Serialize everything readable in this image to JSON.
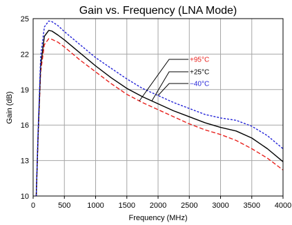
{
  "chart_data": {
    "type": "line",
    "title": "Gain vs. Frequency (LNA Mode)",
    "xlabel": "Frequency (MHz)",
    "ylabel": "Gain (dB)",
    "xlim": [
      0,
      4000
    ],
    "ylim": [
      10,
      25
    ],
    "xticks": [
      0,
      500,
      1000,
      1500,
      2000,
      2500,
      3000,
      3500,
      4000
    ],
    "yticks": [
      10,
      13,
      16,
      19,
      22,
      25
    ],
    "grid": true,
    "legend_placement": "annotation-center-right",
    "series": [
      {
        "name": "+95°C",
        "color": "#e8201c",
        "dash": "dashed",
        "x": [
          50,
          80,
          120,
          180,
          250,
          300,
          400,
          500,
          750,
          1000,
          1250,
          1500,
          1750,
          2000,
          2250,
          2500,
          2750,
          3000,
          3250,
          3500,
          3750,
          4000
        ],
        "y": [
          10.0,
          15.0,
          20.5,
          22.8,
          23.3,
          23.25,
          23.0,
          22.6,
          21.5,
          20.5,
          19.5,
          18.6,
          17.9,
          17.3,
          16.7,
          16.1,
          15.6,
          15.2,
          14.7,
          14.0,
          13.2,
          12.2
        ]
      },
      {
        "name": "+25°C",
        "color": "#000000",
        "dash": "solid",
        "x": [
          50,
          80,
          120,
          180,
          250,
          300,
          400,
          500,
          750,
          1000,
          1250,
          1500,
          1750,
          2000,
          2250,
          2500,
          2750,
          3000,
          3250,
          3500,
          3750,
          4000
        ],
        "y": [
          10.0,
          15.2,
          21.0,
          23.5,
          24.0,
          23.95,
          23.6,
          23.2,
          22.1,
          21.0,
          20.0,
          19.1,
          18.4,
          17.8,
          17.2,
          16.7,
          16.2,
          15.8,
          15.5,
          14.9,
          14.0,
          12.9
        ]
      },
      {
        "name": "−40°C",
        "color": "#2323d8",
        "dash": "dotted",
        "x": [
          50,
          80,
          120,
          180,
          250,
          300,
          400,
          500,
          750,
          1000,
          1250,
          1500,
          1750,
          2000,
          2250,
          2500,
          2750,
          3000,
          3250,
          3500,
          3750,
          4000
        ],
        "y": [
          10.0,
          15.5,
          21.8,
          24.3,
          24.8,
          24.75,
          24.4,
          23.9,
          22.8,
          21.7,
          20.8,
          19.9,
          19.1,
          18.5,
          17.9,
          17.4,
          16.9,
          16.6,
          16.4,
          15.9,
          15.1,
          14.0
        ]
      }
    ]
  }
}
